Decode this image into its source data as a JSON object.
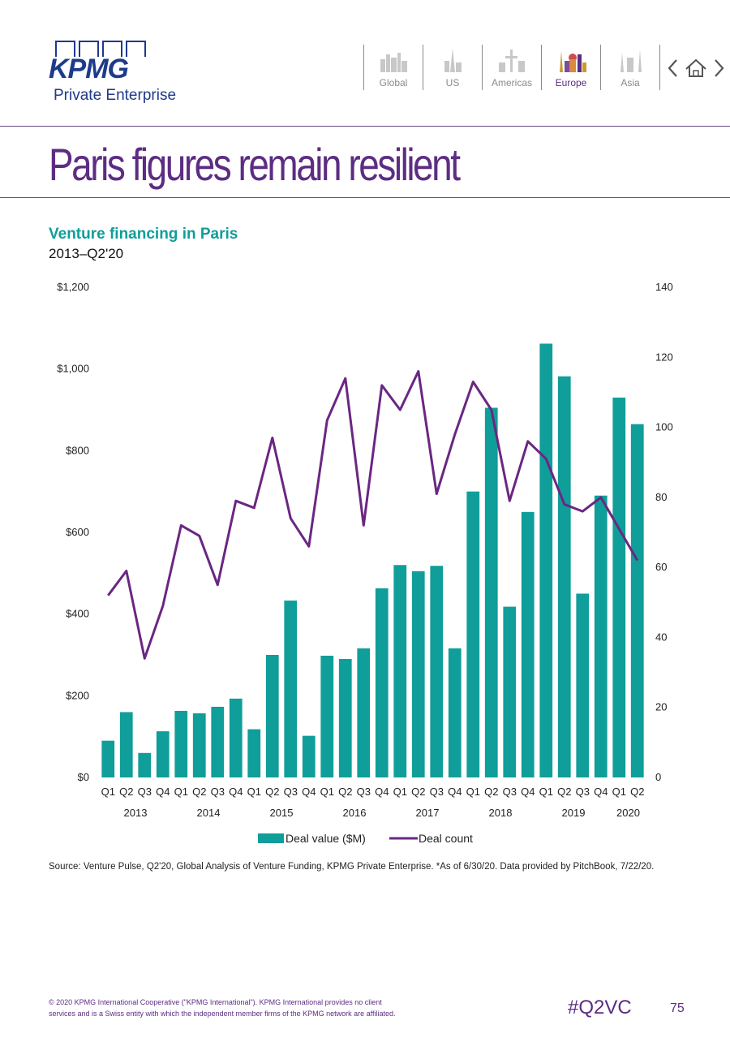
{
  "logo": {
    "word": "KPMG",
    "sub": "Private Enterprise"
  },
  "nav": {
    "items": [
      {
        "label": "Global",
        "icon": "global-skyline-icon"
      },
      {
        "label": "US",
        "icon": "us-skyline-icon"
      },
      {
        "label": "Americas",
        "icon": "americas-skyline-icon"
      },
      {
        "label": "Europe",
        "icon": "europe-skyline-icon",
        "active": true
      },
      {
        "label": "Asia",
        "icon": "asia-skyline-icon"
      }
    ],
    "controls": [
      "chevron-left-icon",
      "home-icon",
      "chevron-right-icon"
    ]
  },
  "page": {
    "title": "Paris figures remain resilient"
  },
  "chart_data": {
    "type": "bar",
    "title": "Venture financing in Paris",
    "subtitle": "2013–Q2'20",
    "categories": [
      "Q1",
      "Q2",
      "Q3",
      "Q4",
      "Q1",
      "Q2",
      "Q3",
      "Q4",
      "Q1",
      "Q2",
      "Q3",
      "Q4",
      "Q1",
      "Q2",
      "Q3",
      "Q4",
      "Q1",
      "Q2",
      "Q3",
      "Q4",
      "Q1",
      "Q2",
      "Q3",
      "Q4",
      "Q1",
      "Q2",
      "Q3",
      "Q4",
      "Q1",
      "Q2"
    ],
    "years": [
      {
        "label": "2013",
        "count": 4
      },
      {
        "label": "2014",
        "count": 4
      },
      {
        "label": "2015",
        "count": 4
      },
      {
        "label": "2016",
        "count": 4
      },
      {
        "label": "2017",
        "count": 4
      },
      {
        "label": "2018",
        "count": 4
      },
      {
        "label": "2019",
        "count": 4
      },
      {
        "label": "2020",
        "count": 2
      }
    ],
    "series": [
      {
        "name": "Deal value ($M)",
        "type": "bar",
        "axis": "left",
        "color": "#0f9e99",
        "values": [
          90,
          160,
          60,
          113,
          163,
          157,
          173,
          193,
          118,
          300,
          433,
          102,
          298,
          290,
          316,
          463,
          520,
          505,
          518,
          316,
          700,
          905,
          418,
          650,
          1062,
          982,
          450,
          690,
          930,
          865
        ]
      },
      {
        "name": "Deal count",
        "type": "line",
        "axis": "right",
        "color": "#6a2782",
        "values": [
          52,
          59,
          34,
          49,
          72,
          69,
          55,
          79,
          77,
          97,
          74,
          66,
          102,
          114,
          72,
          112,
          105,
          116,
          81,
          98,
          113,
          105,
          79,
          96,
          91,
          78,
          76,
          80,
          71,
          62
        ]
      }
    ],
    "y_left": {
      "min": 0,
      "max": 1200,
      "ticks": [
        "$0",
        "$200",
        "$400",
        "$600",
        "$800",
        "$1,000",
        "$1,200"
      ]
    },
    "y_right": {
      "min": 0,
      "max": 140,
      "ticks": [
        "0",
        "20",
        "40",
        "60",
        "80",
        "100",
        "120",
        "140"
      ]
    },
    "legend_position": "bottom-center",
    "grid": false
  },
  "source": "Source: Venture Pulse, Q2'20, Global Analysis of Venture Funding, KPMG Private Enterprise. *As of 6/30/20. Data provided by PitchBook, 7/22/20.",
  "footer": {
    "copyright_line1": "© 2020 KPMG International Cooperative (\"KPMG International\"). KPMG International provides no client",
    "copyright_line2": "services and is a Swiss entity with which the independent member firms of the KPMG network are affiliated.",
    "hashtag": "#Q2VC",
    "page_number": "75"
  }
}
